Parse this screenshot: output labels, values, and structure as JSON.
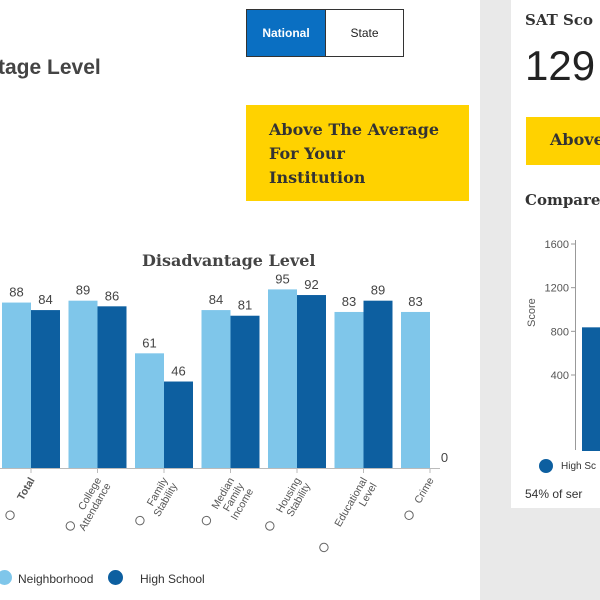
{
  "toggle": {
    "national": "National",
    "state": "State"
  },
  "panel": {
    "title_fragment": "tage Level"
  },
  "callout": {
    "lines": [
      "Above The Average",
      "For Your",
      "Institution"
    ]
  },
  "chart": {
    "title": "Disadvantage Level"
  },
  "chart_data": {
    "type": "bar",
    "title": "Disadvantage Level",
    "categories": [
      [
        "Total"
      ],
      [
        "College",
        "Attendance"
      ],
      [
        "Family",
        "Stability"
      ],
      [
        "Median",
        "Family",
        "Income"
      ],
      [
        "Housing",
        "Stability"
      ],
      [
        "Educational",
        "Level"
      ],
      [
        "Crime"
      ]
    ],
    "series": [
      {
        "name": "Neighborhood",
        "color": "#7fc6ea",
        "values": [
          88,
          89,
          61,
          84,
          95,
          83,
          83
        ]
      },
      {
        "name": "High School",
        "color": "#0d5fa0",
        "values": [
          84,
          86,
          46,
          81,
          92,
          89,
          0
        ]
      }
    ],
    "ylim": [
      0,
      100
    ],
    "legend": "bottom-left"
  },
  "legend": {
    "neighborhood": "Neighborhood",
    "high_school": "High School"
  },
  "right": {
    "sat_label": "SAT Sco",
    "sat_score": "129",
    "callout": "Above",
    "compare_label": "Compare",
    "axis_label": "Score",
    "ticks": [
      "1600",
      "1200",
      "800",
      "400"
    ],
    "legend_hs": "High Sc",
    "percent_text": "54% of ser"
  },
  "right_chart_data": {
    "type": "bar",
    "ylabel": "Score",
    "ylim": [
      400,
      1600
    ],
    "yticks": [
      1600,
      1200,
      800,
      400
    ],
    "series": [
      {
        "name": "High School",
        "color": "#0d5fa0",
        "values": [
          800
        ]
      }
    ]
  }
}
